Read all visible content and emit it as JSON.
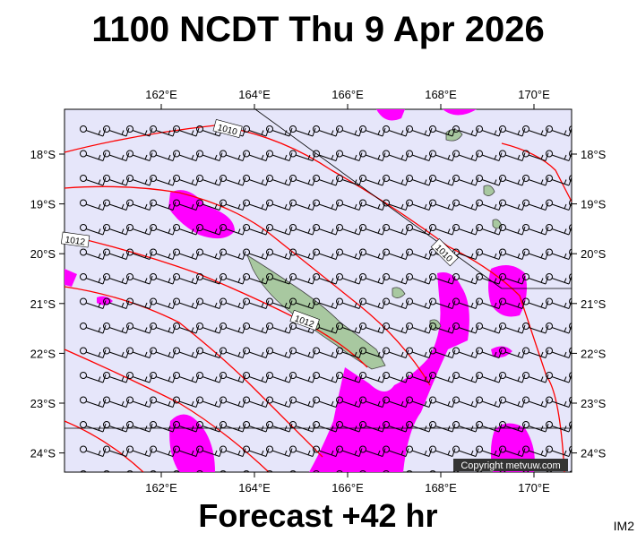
{
  "header": {
    "title": "1100 NCDT Thu 9 Apr 2026"
  },
  "map": {
    "lon_ticks": [
      {
        "value": 162,
        "label": "162°E"
      },
      {
        "value": 164,
        "label": "164°E"
      },
      {
        "value": 166,
        "label": "166°E"
      },
      {
        "value": 168,
        "label": "168°E"
      },
      {
        "value": 170,
        "label": "170°E"
      }
    ],
    "lat_ticks": [
      {
        "value": 18,
        "label": "18°S"
      },
      {
        "value": 19,
        "label": "19°S"
      },
      {
        "value": 20,
        "label": "20°S"
      },
      {
        "value": 21,
        "label": "21°S"
      },
      {
        "value": 22,
        "label": "22°S"
      },
      {
        "value": 23,
        "label": "23°S"
      },
      {
        "value": 24,
        "label": "24°S"
      }
    ],
    "isobar_labels": [
      "1010",
      "1012",
      "1010",
      "1012"
    ],
    "copyright": "Copyright metvuw.com"
  },
  "footer": {
    "caption": "Forecast +42 hr",
    "id": "IM2"
  }
}
